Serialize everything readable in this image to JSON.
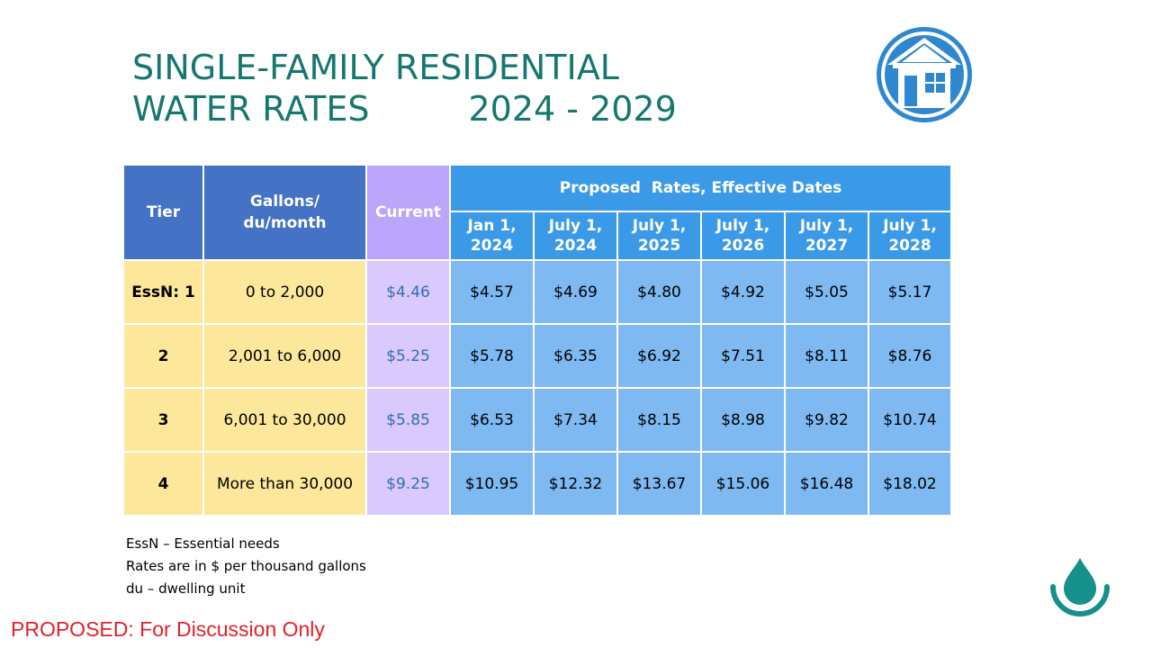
{
  "title": {
    "line1": "SINGLE-FAMILY RESIDENTIAL",
    "line2": "WATER RATES",
    "years": "2024 - 2029"
  },
  "table": {
    "header": {
      "tier": "Tier",
      "gallons": "Gallons/ du/month",
      "current": "Current",
      "proposed": "Proposed  Rates, Effective Dates",
      "dates": [
        "Jan 1, 2024",
        "July 1, 2024",
        "July 1, 2025",
        "July 1, 2026",
        "July 1, 2027",
        "July 1, 2028"
      ]
    },
    "rows": [
      {
        "tier": "EssN: 1",
        "gallons": "0 to 2,000",
        "current": "$4.46",
        "rates": [
          "$4.57",
          "$4.69",
          "$4.80",
          "$4.92",
          "$5.05",
          "$5.17"
        ]
      },
      {
        "tier": "2",
        "gallons": "2,001 to 6,000",
        "current": "$5.25",
        "rates": [
          "$5.78",
          "$6.35",
          "$6.92",
          "$7.51",
          "$8.11",
          "$8.76"
        ]
      },
      {
        "tier": "3",
        "gallons": "6,001 to 30,000",
        "current": "$5.85",
        "rates": [
          "$6.53",
          "$7.34",
          "$8.15",
          "$8.98",
          "$9.82",
          "$10.74"
        ]
      },
      {
        "tier": "4",
        "gallons": "More than 30,000",
        "current": "$9.25",
        "rates": [
          "$10.95",
          "$12.32",
          "$13.67",
          "$15.06",
          "$16.48",
          "$18.02"
        ]
      }
    ]
  },
  "notes": [
    "EssN – Essential needs",
    "Rates are in $ per thousand gallons",
    "du – dwelling unit"
  ],
  "disclaimer": "PROPOSED: For Discussion Only",
  "icons": {
    "house_logo": "house-logo-icon",
    "drop_logo": "water-drop-logo-icon"
  },
  "colors": {
    "title": "#16776f",
    "header_dark": "#4472c4",
    "header_current": "#bca6fb",
    "header_proposed": "#3b9ae8",
    "tier_cells": "#fde79a",
    "current_cells": "#d9c9fc",
    "rate_cells": "#7eb9f2",
    "disclaimer": "#e3202a"
  }
}
